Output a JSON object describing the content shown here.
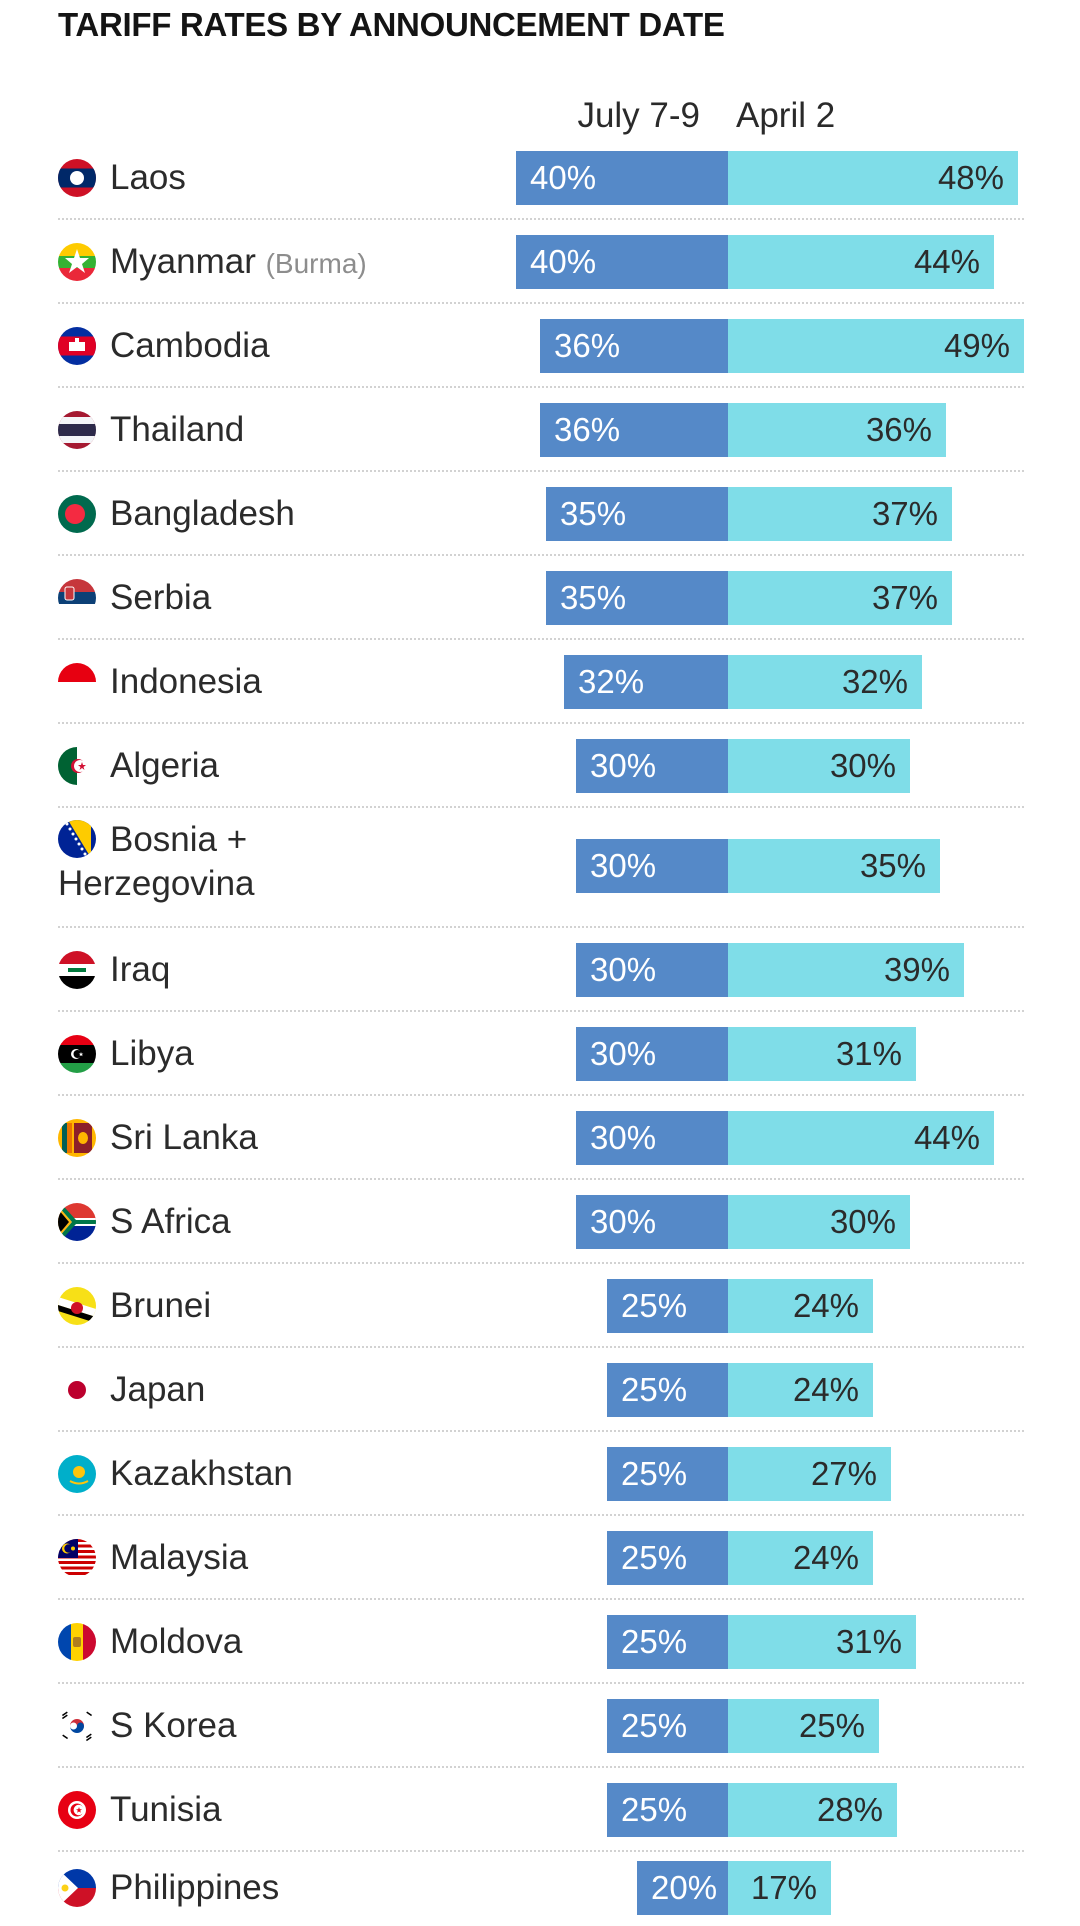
{
  "title": "TARIFF RATES BY ANNOUNCEMENT DATE",
  "columns": {
    "left": "July 7-9",
    "right": "April 2"
  },
  "colors": {
    "july": "#5589c8",
    "april": "#7fdde8"
  },
  "chart_data": {
    "type": "bar",
    "title": "TARIFF RATES BY ANNOUNCEMENT DATE",
    "orientation": "horizontal",
    "categories": [
      "Laos",
      "Myanmar (Burma)",
      "Cambodia",
      "Thailand",
      "Bangladesh",
      "Serbia",
      "Indonesia",
      "Algeria",
      "Bosnia + Herzegovina",
      "Iraq",
      "Libya",
      "Sri Lanka",
      "S Africa",
      "Brunei",
      "Japan",
      "Kazakhstan",
      "Malaysia",
      "Moldova",
      "S Korea",
      "Tunisia",
      "Philippines"
    ],
    "series": [
      {
        "name": "July 7-9",
        "values": [
          40,
          40,
          36,
          36,
          35,
          35,
          32,
          30,
          30,
          30,
          30,
          30,
          30,
          25,
          25,
          25,
          25,
          25,
          25,
          25,
          20
        ]
      },
      {
        "name": "April 2",
        "values": [
          48,
          44,
          49,
          36,
          37,
          37,
          32,
          30,
          35,
          39,
          31,
          44,
          30,
          24,
          24,
          27,
          24,
          31,
          25,
          28,
          17
        ]
      }
    ],
    "unit": "%",
    "grid": false,
    "legend": "top"
  },
  "rows": [
    {
      "name": "Laos",
      "sub": "",
      "flag": "laos-flag-icon",
      "july": 40,
      "july_label": "40%",
      "april": 48,
      "april_label": "48%"
    },
    {
      "name": "Myanmar",
      "sub": "(Burma)",
      "flag": "myanmar-flag-icon",
      "july": 40,
      "july_label": "40%",
      "april": 44,
      "april_label": "44%"
    },
    {
      "name": "Cambodia",
      "sub": "",
      "flag": "cambodia-flag-icon",
      "july": 36,
      "july_label": "36%",
      "april": 49,
      "april_label": "49%"
    },
    {
      "name": "Thailand",
      "sub": "",
      "flag": "thailand-flag-icon",
      "july": 36,
      "july_label": "36%",
      "april": 36,
      "april_label": "36%"
    },
    {
      "name": "Bangladesh",
      "sub": "",
      "flag": "bangladesh-flag-icon",
      "july": 35,
      "july_label": "35%",
      "april": 37,
      "april_label": "37%"
    },
    {
      "name": "Serbia",
      "sub": "",
      "flag": "serbia-flag-icon",
      "july": 35,
      "july_label": "35%",
      "april": 37,
      "april_label": "37%"
    },
    {
      "name": "Indonesia",
      "sub": "",
      "flag": "indonesia-flag-icon",
      "july": 32,
      "july_label": "32%",
      "april": 32,
      "april_label": "32%"
    },
    {
      "name": "Algeria",
      "sub": "",
      "flag": "algeria-flag-icon",
      "july": 30,
      "july_label": "30%",
      "april": 30,
      "april_label": "30%"
    },
    {
      "name": "Bosnia +",
      "name2": "Herzegovina",
      "sub": "",
      "flag": "bosnia-flag-icon",
      "july": 30,
      "july_label": "30%",
      "april": 35,
      "april_label": "35%"
    },
    {
      "name": "Iraq",
      "sub": "",
      "flag": "iraq-flag-icon",
      "july": 30,
      "july_label": "30%",
      "april": 39,
      "april_label": "39%"
    },
    {
      "name": "Libya",
      "sub": "",
      "flag": "libya-flag-icon",
      "july": 30,
      "july_label": "30%",
      "april": 31,
      "april_label": "31%"
    },
    {
      "name": "Sri Lanka",
      "sub": "",
      "flag": "sri-lanka-flag-icon",
      "july": 30,
      "july_label": "30%",
      "april": 44,
      "april_label": "44%"
    },
    {
      "name": "S Africa",
      "sub": "",
      "flag": "south-africa-flag-icon",
      "july": 30,
      "july_label": "30%",
      "april": 30,
      "april_label": "30%"
    },
    {
      "name": "Brunei",
      "sub": "",
      "flag": "brunei-flag-icon",
      "july": 25,
      "july_label": "25%",
      "april": 24,
      "april_label": "24%"
    },
    {
      "name": "Japan",
      "sub": "",
      "flag": "japan-flag-icon",
      "july": 25,
      "july_label": "25%",
      "april": 24,
      "april_label": "24%"
    },
    {
      "name": "Kazakhstan",
      "sub": "",
      "flag": "kazakhstan-flag-icon",
      "july": 25,
      "july_label": "25%",
      "april": 27,
      "april_label": "27%"
    },
    {
      "name": "Malaysia",
      "sub": "",
      "flag": "malaysia-flag-icon",
      "july": 25,
      "july_label": "25%",
      "april": 24,
      "april_label": "24%"
    },
    {
      "name": "Moldova",
      "sub": "",
      "flag": "moldova-flag-icon",
      "july": 25,
      "july_label": "25%",
      "april": 31,
      "april_label": "31%"
    },
    {
      "name": "S Korea",
      "sub": "",
      "flag": "south-korea-flag-icon",
      "july": 25,
      "july_label": "25%",
      "april": 25,
      "april_label": "25%"
    },
    {
      "name": "Tunisia",
      "sub": "",
      "flag": "tunisia-flag-icon",
      "july": 25,
      "july_label": "25%",
      "april": 28,
      "april_label": "28%"
    },
    {
      "name": "Philippines",
      "sub": "",
      "flag": "philippines-flag-icon",
      "july": 20,
      "july_label": "20%",
      "april": 17,
      "april_label": "17%"
    }
  ]
}
